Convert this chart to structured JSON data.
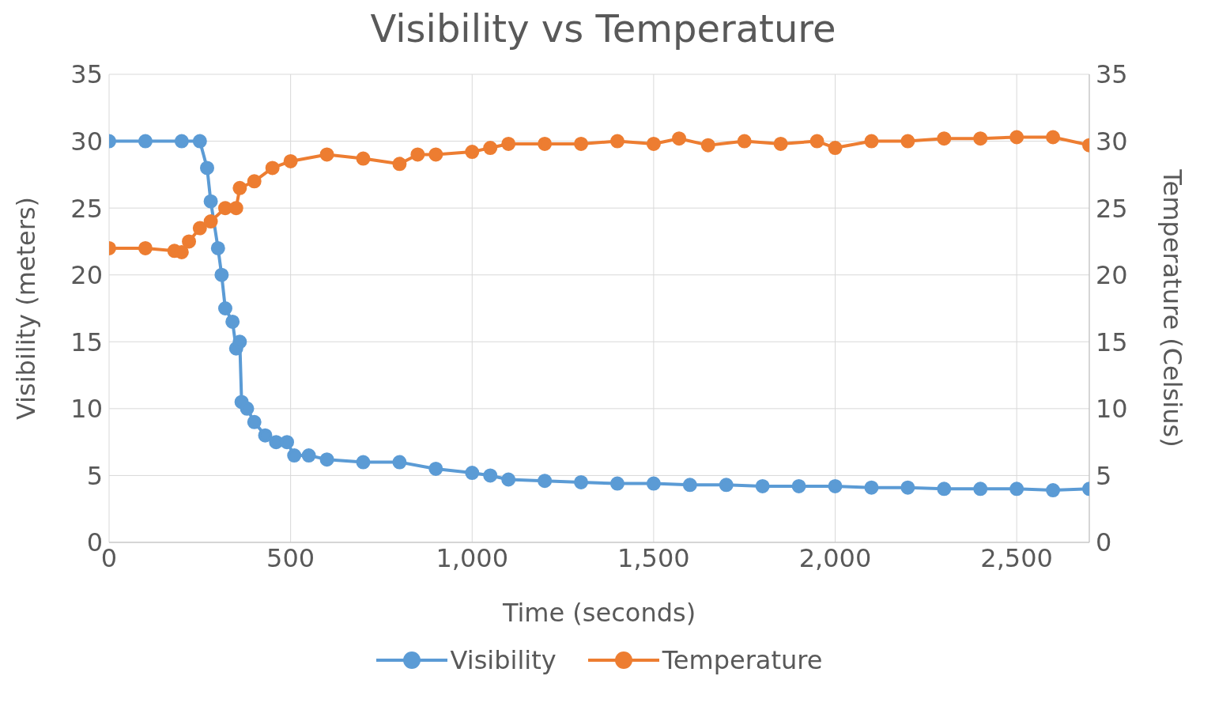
{
  "chart_data": {
    "type": "line",
    "title": "Visibility vs Temperature",
    "xlabel": "Time (seconds)",
    "ylabel": "Visibility (meters)",
    "y2label": "Temperature (Celsius)",
    "xlim": [
      0,
      2700
    ],
    "xticks": [
      0,
      {
        "value": 500,
        "label": "500"
      },
      {
        "value": 1000,
        "label": "1,000"
      },
      {
        "value": 1500,
        "label": "1,500"
      },
      {
        "value": 2000,
        "label": "2,000"
      },
      {
        "value": 2500,
        "label": "2,500"
      }
    ],
    "ylim": [
      0,
      35
    ],
    "yticks": [
      0,
      5,
      10,
      15,
      20,
      25,
      30,
      35
    ],
    "y2lim": [
      0,
      35
    ],
    "y2ticks": [
      0,
      5,
      10,
      15,
      20,
      25,
      30,
      35
    ],
    "grid": true,
    "legend": "bottom",
    "marker": "circle",
    "line_style": "solid",
    "series": [
      {
        "name": "Visibility",
        "color": "#5b9bd5",
        "x": [
          0,
          100,
          200,
          250,
          270,
          280,
          300,
          310,
          320,
          340,
          350,
          360,
          365,
          380,
          400,
          430,
          460,
          490,
          510,
          550,
          600,
          700,
          800,
          900,
          1000,
          1050,
          1100,
          1200,
          1300,
          1400,
          1500,
          1600,
          1700,
          1800,
          1900,
          2000,
          2100,
          2200,
          2300,
          2400,
          2500,
          2600,
          2700
        ],
        "values": [
          30,
          30,
          30,
          30,
          28,
          25.5,
          22,
          20,
          17.5,
          16.5,
          14.5,
          15,
          10.5,
          10,
          9,
          8,
          7.5,
          7.5,
          6.5,
          6.5,
          6.2,
          6,
          6,
          5.5,
          5.2,
          5,
          4.7,
          4.6,
          4.5,
          4.4,
          4.4,
          4.3,
          4.3,
          4.2,
          4.2,
          4.2,
          4.1,
          4.1,
          4,
          4,
          4,
          3.9,
          4
        ]
      },
      {
        "name": "Temperature",
        "color": "#ed7d31",
        "axis": "y2",
        "x": [
          0,
          100,
          180,
          200,
          220,
          250,
          280,
          320,
          350,
          360,
          400,
          450,
          500,
          600,
          700,
          800,
          850,
          900,
          1000,
          1050,
          1100,
          1200,
          1300,
          1400,
          1500,
          1570,
          1650,
          1750,
          1850,
          1950,
          2000,
          2100,
          2200,
          2300,
          2400,
          2500,
          2600,
          2700
        ],
        "values": [
          22,
          22,
          21.8,
          21.7,
          22.5,
          23.5,
          24,
          25,
          25,
          26.5,
          27,
          28,
          28.5,
          29,
          28.7,
          28.3,
          29,
          29,
          29.2,
          29.5,
          29.8,
          29.8,
          29.8,
          30,
          29.8,
          30.2,
          29.7,
          30,
          29.8,
          30,
          29.5,
          30,
          30,
          30.2,
          30.2,
          30.3,
          30.3,
          29.7
        ]
      }
    ]
  }
}
